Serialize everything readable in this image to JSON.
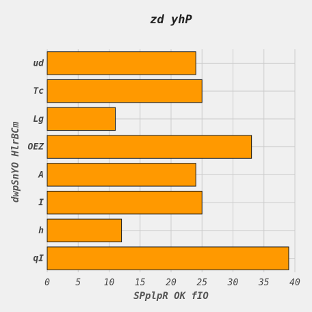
{
  "chart_data": {
    "type": "bar",
    "orientation": "horizontal",
    "title": "zd  yhP",
    "xlabel": "SPplpR OK fIO",
    "ylabel": "dwpSnYO HlrBCm",
    "categories": [
      "ud",
      "Tc",
      "Lg",
      "OEZ",
      "A",
      "I",
      "h",
      "qI"
    ],
    "values": [
      24,
      25,
      11,
      33,
      24,
      25,
      12,
      39
    ],
    "xlim": [
      0,
      40
    ],
    "xticks": [
      0,
      5,
      10,
      15,
      20,
      25,
      30,
      35,
      40
    ],
    "grid": true,
    "bar_color": "#ff9900"
  }
}
